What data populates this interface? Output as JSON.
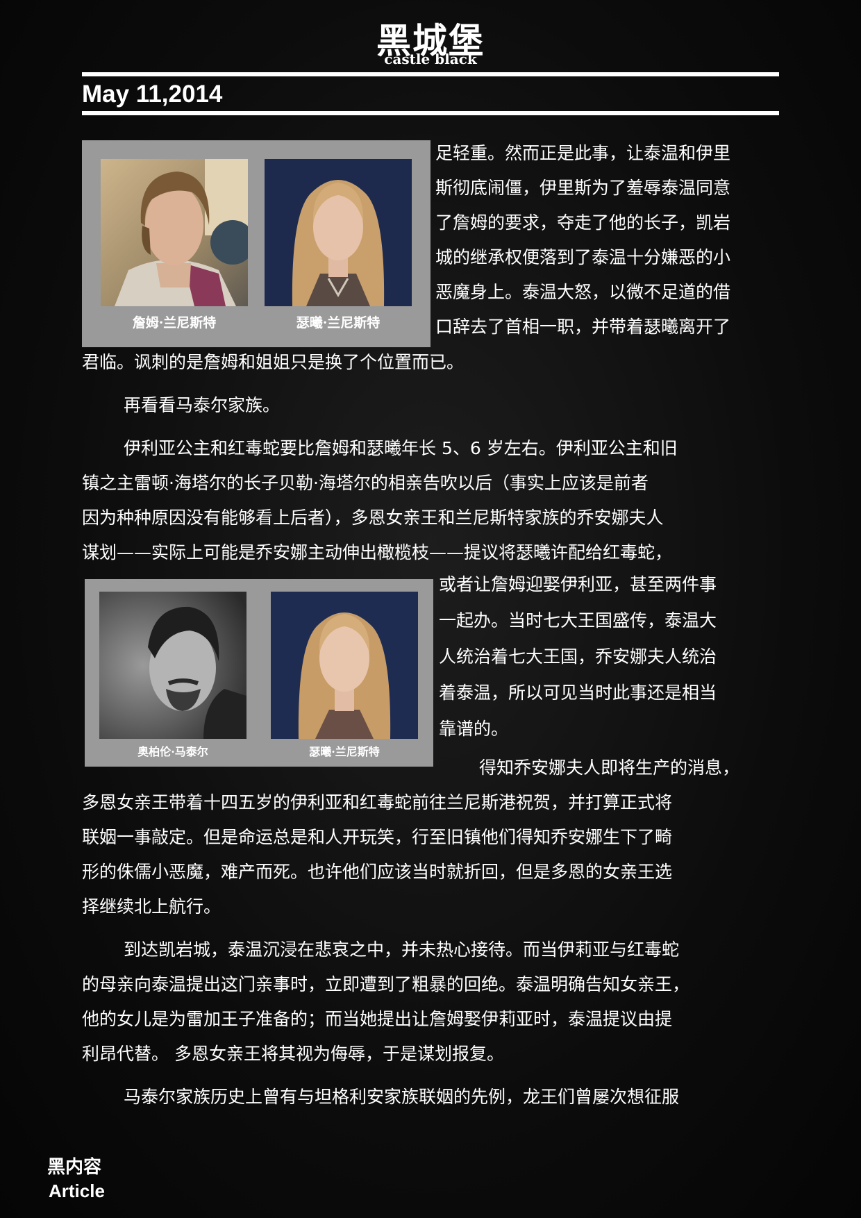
{
  "masthead": {
    "title_zh": "黑城堡",
    "title_en": "castle black"
  },
  "date": "May 11,2014",
  "figure1": {
    "captions": [
      "詹姆·兰尼斯特",
      "瑟曦·兰尼斯特"
    ]
  },
  "figure2": {
    "captions": [
      "奥柏伦·马泰尔",
      "瑟曦·兰尼斯特"
    ]
  },
  "body_lines": [
    "足轻重。然而正是此事，让泰温和伊里",
    "斯彻底闹僵，伊里斯为了羞辱泰温同意",
    "了詹姆的要求，夺走了他的长子，凯岩",
    "城的继承权便落到了泰温十分嫌恶的小",
    "恶魔身上。泰温大怒，以微不足道的借",
    "口辞去了首相一职，并带着瑟曦离开了",
    "君临。讽刺的是詹姆和姐姐只是换了个位置而已。",
    "再看看马泰尔家族。",
    "伊利亚公主和红毒蛇要比詹姆和瑟曦年长 5、6 岁左右。伊利亚公主和旧",
    "镇之主雷顿·海塔尔的长子贝勒·海塔尔的相亲告吹以后（事实上应该是前者",
    "因为种种原因没有能够看上后者），多恩女亲王和兰尼斯特家族的乔安娜夫人",
    "谋划——实际上可能是乔安娜主动伸出橄榄枝——提议将瑟曦许配给红毒蛇，",
    "或者让詹姆迎娶伊利亚，甚至两件事",
    "一起办。当时七大王国盛传，泰温大",
    "人统治着七大王国，乔安娜夫人统治",
    "着泰温，所以可见当时此事还是相当",
    "靠谱的。",
    "得知乔安娜夫人即将生产的消息，",
    "多恩女亲王带着十四五岁的伊利亚和红毒蛇前往兰尼斯港祝贺，并打算正式将",
    "联姻一事敲定。但是命运总是和人开玩笑，行至旧镇他们得知乔安娜生下了畸",
    "形的侏儒小恶魔，难产而死。也许他们应该当时就折回，但是多恩的女亲王选",
    "择继续北上航行。",
    "到达凯岩城，泰温沉浸在悲哀之中，并未热心接待。而当伊莉亚与红毒蛇",
    "的母亲向泰温提出这门亲事时，立即遭到了粗暴的回绝。泰温明确告知女亲王，",
    "他的女儿是为雷加王子准备的；而当她提出让詹姆娶伊莉亚时，泰温提议由提",
    "利昂代替。 多恩女亲王将其视为侮辱，于是谋划报复。",
    "马泰尔家族历史上曾有与坦格利安家族联姻的先例，龙王们曾屡次想征服"
  ],
  "footer": {
    "section_zh": "黑内容",
    "section_en": "Article"
  }
}
